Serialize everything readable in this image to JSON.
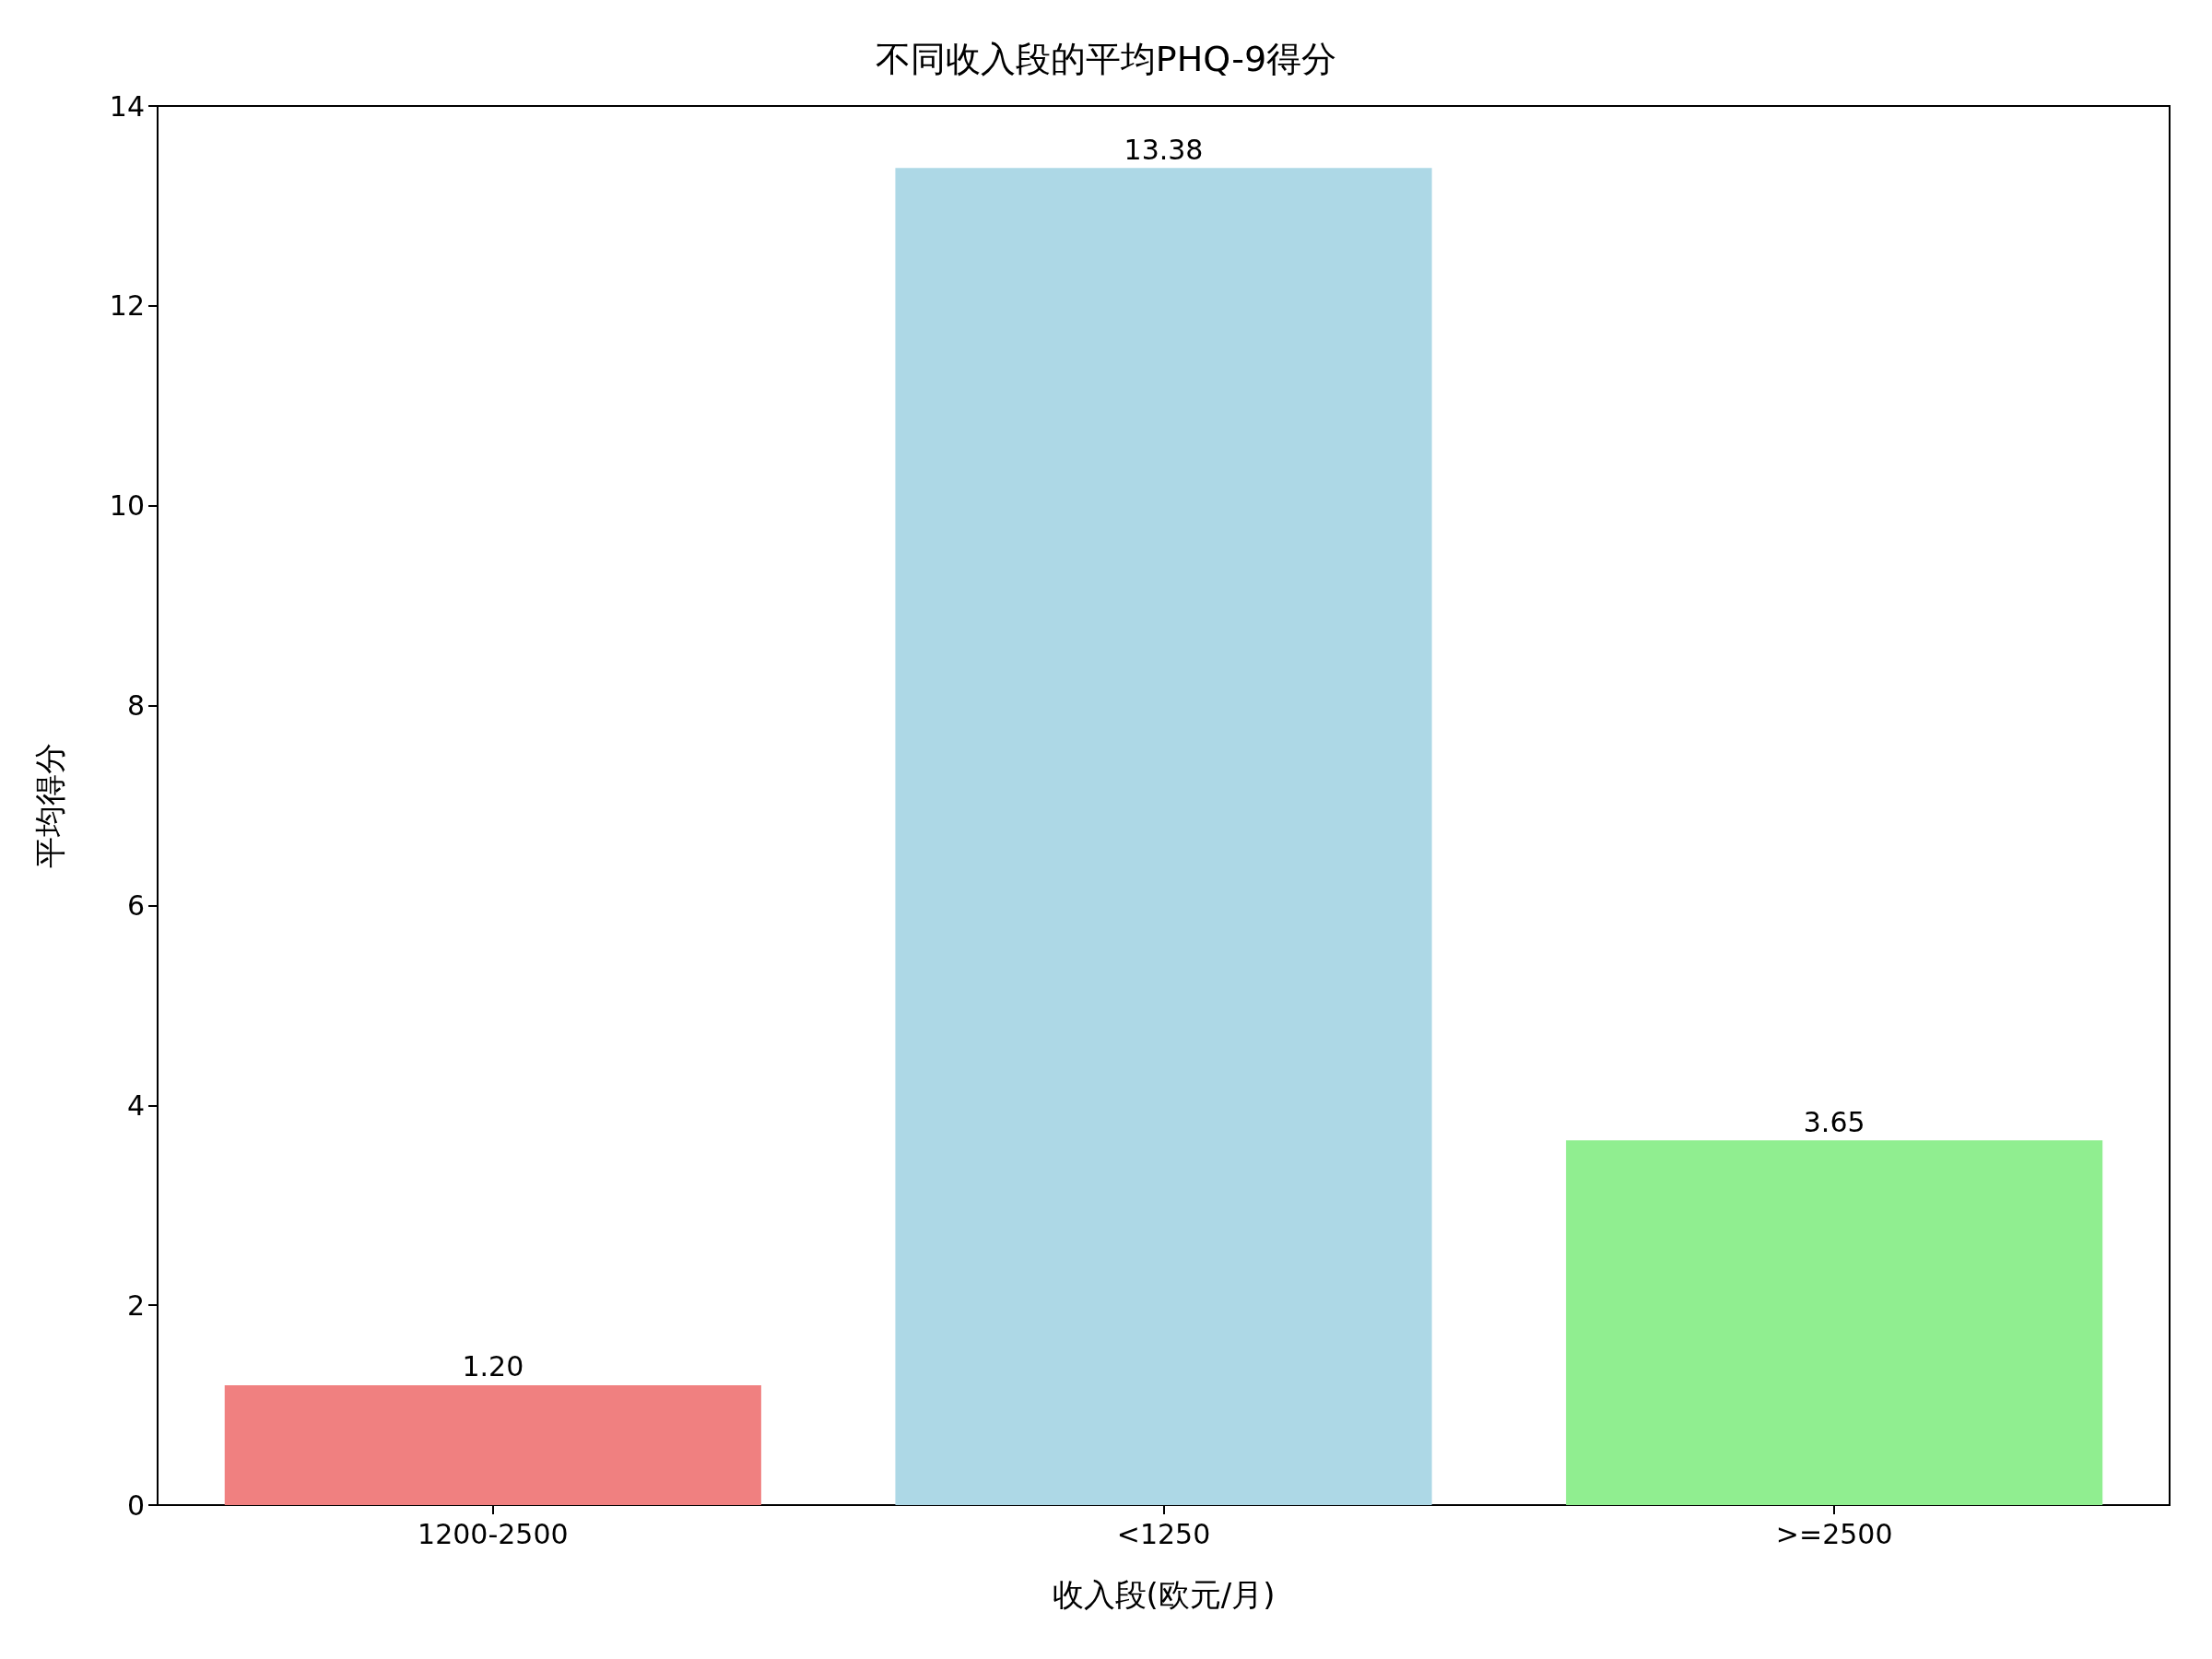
{
  "chart_data": {
    "type": "bar",
    "title": "不同收入段的平均PHQ-9得分",
    "xlabel": "收入段(欧元/月)",
    "ylabel": "平均得分",
    "categories": [
      "1200-2500",
      "<1250",
      ">=2500"
    ],
    "values": [
      1.2,
      13.38,
      3.65
    ],
    "colors": [
      "#f08080",
      "#add8e6",
      "#90ee90"
    ],
    "value_labels": [
      "1.20",
      "13.38",
      "3.65"
    ],
    "ylim": [
      0,
      14
    ],
    "yticks": [
      0,
      2,
      4,
      6,
      8,
      10,
      12,
      14
    ]
  }
}
